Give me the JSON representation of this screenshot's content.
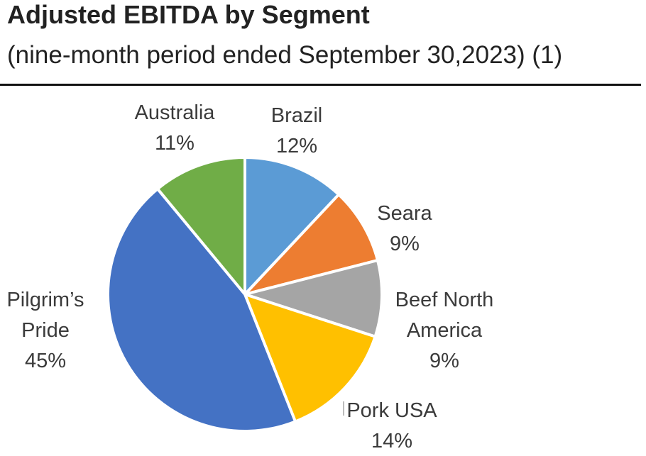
{
  "title": "Adjusted EBITDA by Segment",
  "subtitle": "(nine-month period ended September 30,2023) (1)",
  "chart_data": {
    "type": "pie",
    "title": "Adjusted EBITDA by Segment",
    "subtitle": "(nine-month period ended September 30,2023) (1)",
    "slices": [
      {
        "label": "Brazil",
        "value": 12,
        "display": "12%",
        "color": "#5b9bd5"
      },
      {
        "label": "Seara",
        "value": 9,
        "display": "9%",
        "color": "#ed7d31"
      },
      {
        "label": "Beef North America",
        "value": 9,
        "display": "9%",
        "color": "#a5a5a5"
      },
      {
        "label": "Pork USA",
        "value": 14,
        "display": "14%",
        "color": "#ffc000"
      },
      {
        "label": "Pilgrim’s Pride",
        "value": 45,
        "display": "45%",
        "color": "#4472c4"
      },
      {
        "label": "Australia",
        "value": 11,
        "display": "11%",
        "color": "#70ad47"
      }
    ],
    "start_angle": "12 o'clock",
    "direction": "clockwise"
  }
}
